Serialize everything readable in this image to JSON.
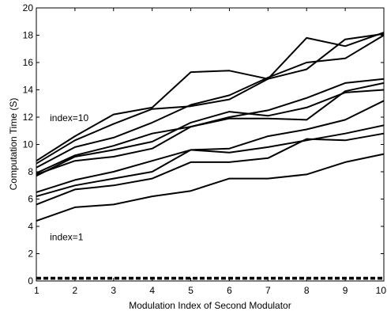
{
  "chart_data": {
    "type": "line",
    "title": "",
    "xlabel": "Modulation Index of Second Modulator",
    "ylabel": "Computation Time (S)",
    "xlim": [
      1,
      10
    ],
    "ylim": [
      0,
      20
    ],
    "x": [
      1,
      2,
      3,
      4,
      5,
      6,
      7,
      8,
      9,
      10
    ],
    "x_tick_labels": [
      "1",
      "2",
      "3",
      "4",
      "5",
      "6",
      "7",
      "8",
      "9",
      "10"
    ],
    "y_tick_labels": [
      "0",
      "2",
      "4",
      "6",
      "8",
      "10",
      "12",
      "14",
      "16",
      "18",
      "20"
    ],
    "grid": false,
    "line_color": "#000000",
    "annotations": [
      {
        "text": "index=10",
        "x": 1.35,
        "y": 11.7
      },
      {
        "text": "index=1",
        "x": 1.35,
        "y": 3.0
      }
    ],
    "series": [
      {
        "values": [
          8.8,
          10.6,
          12.2,
          12.7,
          15.3,
          15.4,
          14.8,
          17.8,
          17.2,
          18.2
        ]
      },
      {
        "values": [
          8.6,
          10.3,
          11.5,
          12.6,
          12.8,
          13.3,
          14.8,
          15.5,
          17.7,
          18.1
        ]
      },
      {
        "values": [
          8.3,
          9.8,
          10.5,
          11.6,
          12.9,
          13.6,
          14.9,
          16.0,
          16.3,
          18.0
        ]
      },
      {
        "values": [
          7.9,
          9.2,
          9.9,
          10.8,
          11.3,
          12.0,
          12.5,
          13.4,
          14.5,
          14.8
        ]
      },
      {
        "values": [
          7.7,
          9.1,
          9.6,
          10.2,
          11.6,
          12.4,
          12.1,
          12.7,
          13.8,
          14.0
        ]
      },
      {
        "values": [
          7.8,
          8.8,
          9.1,
          9.7,
          11.3,
          11.9,
          11.9,
          11.8,
          13.9,
          14.5
        ]
      },
      {
        "values": [
          6.5,
          7.4,
          8.0,
          8.8,
          9.6,
          9.7,
          10.6,
          11.1,
          11.8,
          13.2
        ]
      },
      {
        "values": [
          6.2,
          7.0,
          7.5,
          8.0,
          9.6,
          9.4,
          9.8,
          10.3,
          10.8,
          11.4
        ]
      },
      {
        "values": [
          5.6,
          6.7,
          7.0,
          7.5,
          8.7,
          8.7,
          9.0,
          10.4,
          10.3,
          10.8
        ]
      },
      {
        "values": [
          4.4,
          5.4,
          5.6,
          6.2,
          6.6,
          7.5,
          7.5,
          7.8,
          8.7,
          9.3
        ]
      },
      {
        "style": "dashed",
        "values": [
          0.25,
          0.25,
          0.25,
          0.25,
          0.25,
          0.25,
          0.25,
          0.25,
          0.25,
          0.25
        ]
      },
      {
        "style": "dashed",
        "values": [
          0.15,
          0.15,
          0.15,
          0.15,
          0.15,
          0.15,
          0.15,
          0.15,
          0.15,
          0.15
        ]
      }
    ]
  }
}
